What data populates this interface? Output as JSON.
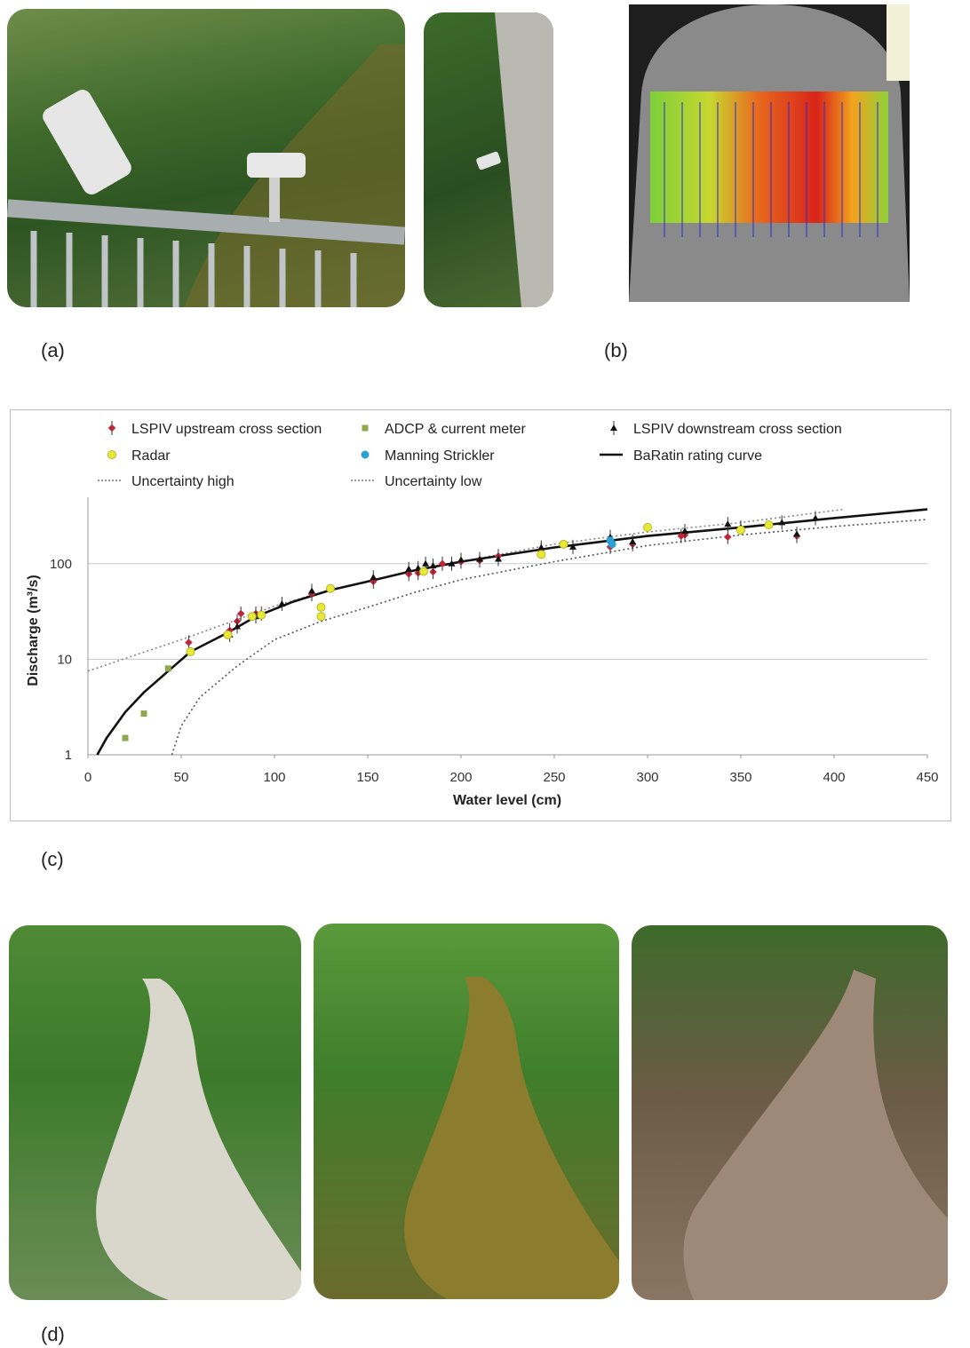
{
  "panels": {
    "a": "(a)",
    "b": "(b)",
    "c": "(c)",
    "d": "(d)"
  },
  "colors": {
    "lspiv_up": "#c0253a",
    "adcp": "#8fa850",
    "lspiv_down": "#111111",
    "radar": "#e8e83a",
    "manning": "#2aa0d4",
    "curve": "#111111",
    "gridline": "#c8c8c8"
  },
  "chart_data": {
    "type": "scatter",
    "title": "",
    "xlabel": "Water level (cm)",
    "ylabel": "Discharge (m³/s)",
    "xlim": [
      0,
      450
    ],
    "ylim": [
      1,
      400
    ],
    "yscale": "log",
    "xticks": [
      "0",
      "50",
      "100",
      "150",
      "200",
      "250",
      "300",
      "350",
      "400",
      "450"
    ],
    "yticks": [
      "1",
      "10",
      "100"
    ],
    "grid": "horizontal",
    "legend_position": "top",
    "legend": [
      {
        "key": "lspiv_up",
        "label": "LSPIV upstream cross section",
        "marker": "cross"
      },
      {
        "key": "adcp",
        "label": "ADCP & current meter",
        "marker": "square"
      },
      {
        "key": "lspiv_down",
        "label": "LSPIV downstream cross section",
        "marker": "triangle"
      },
      {
        "key": "radar",
        "label": "Radar",
        "marker": "circle"
      },
      {
        "key": "manning",
        "label": "Manning Strickler",
        "marker": "dot"
      },
      {
        "key": "curve",
        "label": "BaRatin rating curve",
        "marker": "line"
      },
      {
        "key": "unc_high",
        "label": "Uncertainty high",
        "marker": "dotted"
      },
      {
        "key": "unc_low",
        "label": "Uncertainty low",
        "marker": "dotted"
      }
    ],
    "series": [
      {
        "key": "adcp",
        "points": [
          [
            20,
            1.5
          ],
          [
            30,
            2.7
          ],
          [
            43,
            8
          ]
        ]
      },
      {
        "key": "lspiv_up",
        "points": [
          [
            54,
            15
          ],
          [
            76,
            20
          ],
          [
            80,
            25
          ],
          [
            82,
            30
          ],
          [
            90,
            30
          ],
          [
            93,
            30
          ],
          [
            120,
            48
          ],
          [
            153,
            65
          ],
          [
            172,
            78
          ],
          [
            177,
            80
          ],
          [
            185,
            82
          ],
          [
            190,
            100
          ],
          [
            200,
            105
          ],
          [
            210,
            108
          ],
          [
            220,
            120
          ],
          [
            243,
            140
          ],
          [
            280,
            150
          ],
          [
            292,
            160
          ],
          [
            318,
            195
          ],
          [
            320,
            200
          ],
          [
            343,
            190
          ],
          [
            380,
            195
          ]
        ]
      },
      {
        "key": "lspiv_down",
        "points": [
          [
            76,
            18
          ],
          [
            80,
            22
          ],
          [
            90,
            28
          ],
          [
            104,
            38
          ],
          [
            120,
            52
          ],
          [
            153,
            72
          ],
          [
            172,
            88
          ],
          [
            177,
            90
          ],
          [
            181,
            100
          ],
          [
            185,
            95
          ],
          [
            195,
            100
          ],
          [
            200,
            110
          ],
          [
            210,
            112
          ],
          [
            220,
            112
          ],
          [
            243,
            148
          ],
          [
            260,
            150
          ],
          [
            280,
            190
          ],
          [
            292,
            170
          ],
          [
            320,
            220
          ],
          [
            343,
            260
          ],
          [
            350,
            240
          ],
          [
            372,
            270
          ],
          [
            390,
            300
          ],
          [
            380,
            205
          ]
        ]
      },
      {
        "key": "radar",
        "points": [
          [
            55,
            12
          ],
          [
            75,
            18
          ],
          [
            88,
            28
          ],
          [
            93,
            29
          ],
          [
            125,
            35
          ],
          [
            125,
            28
          ],
          [
            130,
            55
          ],
          [
            180,
            83
          ],
          [
            243,
            125
          ],
          [
            255,
            160
          ],
          [
            300,
            240
          ],
          [
            350,
            225
          ],
          [
            365,
            255
          ]
        ]
      },
      {
        "key": "manning",
        "points": [
          [
            280,
            175
          ],
          [
            281,
            160
          ]
        ]
      }
    ],
    "curves": {
      "rating": [
        [
          5,
          1
        ],
        [
          10,
          1.5
        ],
        [
          20,
          2.8
        ],
        [
          30,
          4.5
        ],
        [
          43,
          7.5
        ],
        [
          55,
          12
        ],
        [
          75,
          19
        ],
        [
          90,
          28
        ],
        [
          110,
          40
        ],
        [
          130,
          53
        ],
        [
          150,
          65
        ],
        [
          175,
          85
        ],
        [
          200,
          105
        ],
        [
          250,
          148
        ],
        [
          300,
          195
        ],
        [
          350,
          240
        ],
        [
          400,
          300
        ],
        [
          450,
          370
        ]
      ],
      "unc_high": [
        [
          0,
          7.5
        ],
        [
          25,
          11
        ],
        [
          50,
          16
        ],
        [
          75,
          24
        ],
        [
          100,
          36
        ],
        [
          125,
          50
        ],
        [
          150,
          66
        ],
        [
          175,
          84
        ],
        [
          200,
          105
        ],
        [
          250,
          160
        ],
        [
          300,
          215
        ],
        [
          350,
          270
        ],
        [
          380,
          320
        ],
        [
          405,
          370
        ]
      ],
      "unc_low": [
        [
          45,
          1
        ],
        [
          50,
          2
        ],
        [
          60,
          4
        ],
        [
          80,
          8.5
        ],
        [
          100,
          16
        ],
        [
          125,
          25
        ],
        [
          150,
          35
        ],
        [
          175,
          50
        ],
        [
          200,
          68
        ],
        [
          250,
          105
        ],
        [
          300,
          155
        ],
        [
          350,
          200
        ],
        [
          400,
          245
        ],
        [
          450,
          290
        ]
      ]
    }
  }
}
